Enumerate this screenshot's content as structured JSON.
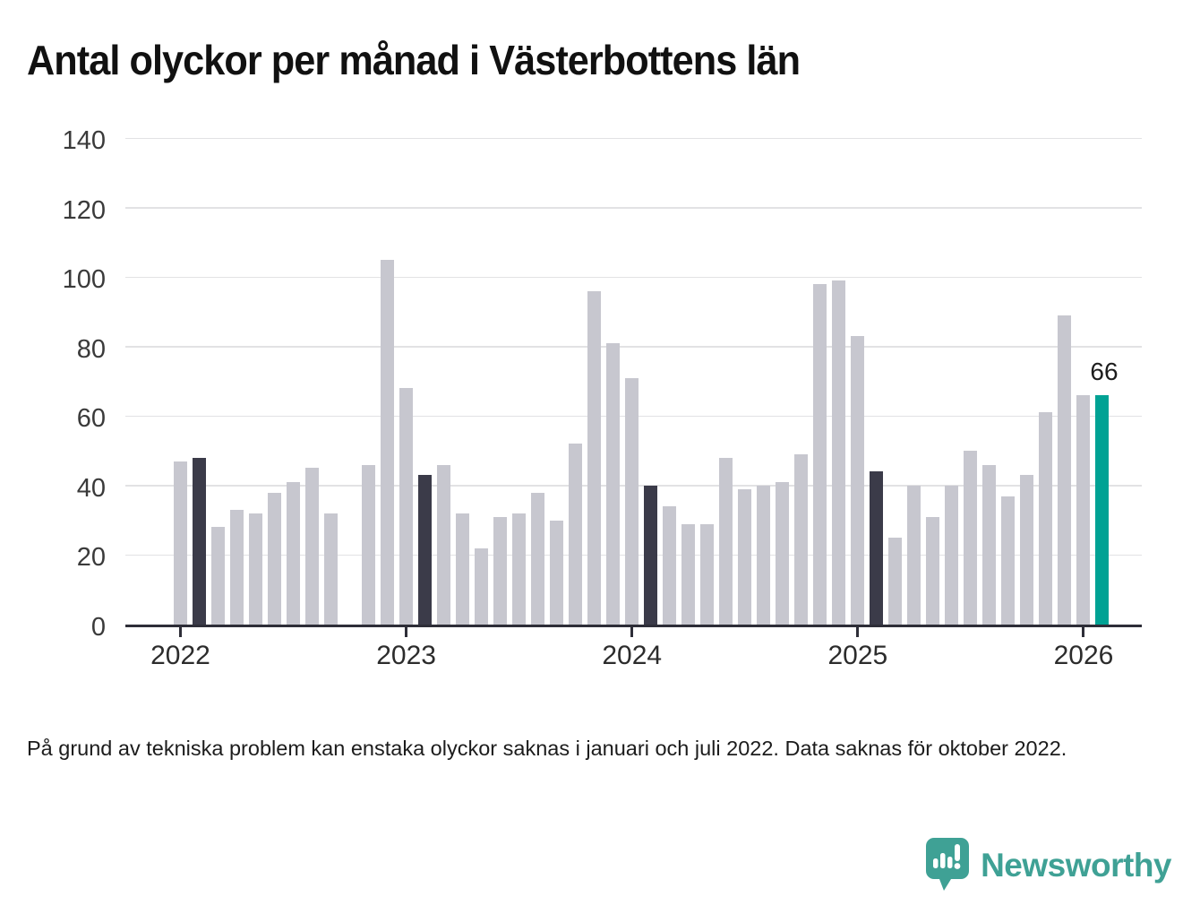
{
  "title": "Antal olyckor per månad i Västerbottens län",
  "footnote": "På grund av tekniska problem kan enstaka olyckor saknas i januari och juli 2022. Data saknas för oktober 2022.",
  "annotation": {
    "last_value_label": "66"
  },
  "brand": {
    "name": "Newsworthy",
    "color": "#3fa195"
  },
  "colors": {
    "bar_default": "#c7c7cf",
    "bar_highlight_dark": "#3b3b49",
    "bar_highlight_accent": "#00a294",
    "axis": "#2e2e38",
    "gridline": "#e2e2e4",
    "text": "#1d1d1d"
  },
  "chart_data": {
    "type": "bar",
    "title": "Antal olyckor per månad i Västerbottens län",
    "xlabel": "",
    "ylabel": "",
    "ylim": [
      0,
      140
    ],
    "y_ticks": [
      0,
      20,
      40,
      60,
      80,
      100,
      120,
      140
    ],
    "year_ticks": [
      "2022",
      "2023",
      "2024",
      "2025",
      "2026"
    ],
    "grid": "horizontal",
    "legend": "none",
    "note": "value null = data missing (oktober 2022); style dark = februari tidigare år; style accent = senaste månaden",
    "months": [
      {
        "m": "2022-01",
        "v": 47
      },
      {
        "m": "2022-02",
        "v": 48,
        "s": "dark"
      },
      {
        "m": "2022-03",
        "v": 28
      },
      {
        "m": "2022-04",
        "v": 33
      },
      {
        "m": "2022-05",
        "v": 32
      },
      {
        "m": "2022-06",
        "v": 38
      },
      {
        "m": "2022-07",
        "v": 41
      },
      {
        "m": "2022-08",
        "v": 45
      },
      {
        "m": "2022-09",
        "v": 32
      },
      {
        "m": "2022-10",
        "v": null
      },
      {
        "m": "2022-11",
        "v": 46
      },
      {
        "m": "2022-12",
        "v": 105
      },
      {
        "m": "2023-01",
        "v": 68
      },
      {
        "m": "2023-02",
        "v": 43,
        "s": "dark"
      },
      {
        "m": "2023-03",
        "v": 46
      },
      {
        "m": "2023-04",
        "v": 32
      },
      {
        "m": "2023-05",
        "v": 22
      },
      {
        "m": "2023-06",
        "v": 31
      },
      {
        "m": "2023-07",
        "v": 32
      },
      {
        "m": "2023-08",
        "v": 38
      },
      {
        "m": "2023-09",
        "v": 30
      },
      {
        "m": "2023-10",
        "v": 52
      },
      {
        "m": "2023-11",
        "v": 96
      },
      {
        "m": "2023-12",
        "v": 81
      },
      {
        "m": "2024-01",
        "v": 71
      },
      {
        "m": "2024-02",
        "v": 40,
        "s": "dark"
      },
      {
        "m": "2024-03",
        "v": 34
      },
      {
        "m": "2024-04",
        "v": 29
      },
      {
        "m": "2024-05",
        "v": 29
      },
      {
        "m": "2024-06",
        "v": 48
      },
      {
        "m": "2024-07",
        "v": 39
      },
      {
        "m": "2024-08",
        "v": 40
      },
      {
        "m": "2024-09",
        "v": 41
      },
      {
        "m": "2024-10",
        "v": 49
      },
      {
        "m": "2024-11",
        "v": 98
      },
      {
        "m": "2024-12",
        "v": 99
      },
      {
        "m": "2025-01",
        "v": 83
      },
      {
        "m": "2025-02",
        "v": 44,
        "s": "dark"
      },
      {
        "m": "2025-03",
        "v": 25
      },
      {
        "m": "2025-04",
        "v": 40
      },
      {
        "m": "2025-05",
        "v": 31
      },
      {
        "m": "2025-06",
        "v": 40
      },
      {
        "m": "2025-07",
        "v": 50
      },
      {
        "m": "2025-08",
        "v": 46
      },
      {
        "m": "2025-09",
        "v": 37
      },
      {
        "m": "2025-10",
        "v": 43
      },
      {
        "m": "2025-11",
        "v": 61
      },
      {
        "m": "2025-12",
        "v": 89
      },
      {
        "m": "2026-01",
        "v": 66
      },
      {
        "m": "2026-02",
        "v": 66,
        "s": "accent"
      }
    ]
  }
}
